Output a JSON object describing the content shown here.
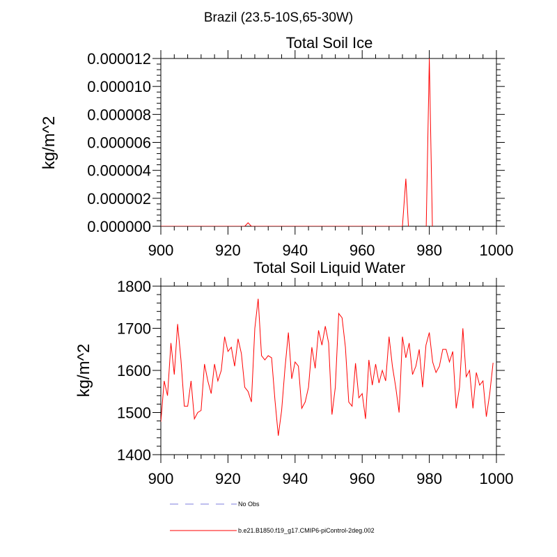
{
  "figure_title": "Brazil (23.5-10S,65-30W)",
  "colors": {
    "series": "#ff0000",
    "obs": "#a9a9e8",
    "axis": "#000000"
  },
  "legend": {
    "placement": "bottom-center",
    "entries": [
      {
        "label": "No Obs",
        "style": "dashed",
        "color": "#a9a9e8"
      },
      {
        "label": "b.e21.B1850.f19_g17.CMIP6-piControl-2deg.002",
        "style": "solid",
        "color": "#ff0000"
      }
    ]
  },
  "chart_data": [
    {
      "type": "line",
      "title": "Total Soil Ice",
      "xlabel": "",
      "ylabel": "kg/m^2",
      "xlim": [
        900,
        1000
      ],
      "ylim": [
        0,
        1.2e-05
      ],
      "xticks": [
        "900",
        "920",
        "940",
        "960",
        "980",
        "1000"
      ],
      "yticks": [
        "0.000000",
        "0.000002",
        "0.000004",
        "0.000006",
        "0.000008",
        "0.000010",
        "0.000012"
      ],
      "grid": false,
      "series": [
        {
          "x": [
            900,
            925,
            926,
            927,
            972,
            973,
            974,
            979,
            980,
            981,
            1000
          ],
          "values": [
            0,
            0,
            2.5e-07,
            0,
            0,
            3.4e-06,
            -1e-06,
            -1e-06,
            1.2e-05,
            -1e-06,
            -1e-06
          ]
        }
      ]
    },
    {
      "type": "line",
      "title": "Total Soil Liquid Water",
      "xlabel": "",
      "ylabel": "kg/m^2",
      "xlim": [
        900,
        1000
      ],
      "ylim": [
        1400,
        1800
      ],
      "xticks": [
        "900",
        "920",
        "940",
        "960",
        "980",
        "1000"
      ],
      "yticks": [
        "1400",
        "1500",
        "1600",
        "1700",
        "1800"
      ],
      "grid": false,
      "series": [
        {
          "x_start": 900,
          "values": [
            1478,
            1575,
            1540,
            1665,
            1590,
            1710,
            1625,
            1515,
            1515,
            1575,
            1485,
            1500,
            1505,
            1615,
            1575,
            1545,
            1615,
            1575,
            1600,
            1680,
            1645,
            1655,
            1610,
            1675,
            1640,
            1560,
            1550,
            1525,
            1700,
            1770,
            1635,
            1625,
            1635,
            1630,
            1530,
            1445,
            1505,
            1605,
            1690,
            1580,
            1620,
            1610,
            1510,
            1525,
            1560,
            1655,
            1605,
            1695,
            1660,
            1705,
            1665,
            1495,
            1560,
            1735,
            1725,
            1655,
            1525,
            1515,
            1617,
            1535,
            1545,
            1485,
            1625,
            1565,
            1615,
            1570,
            1600,
            1575,
            1680,
            1610,
            1560,
            1500,
            1680,
            1630,
            1665,
            1590,
            1610,
            1650,
            1560,
            1660,
            1690,
            1620,
            1595,
            1610,
            1650,
            1650,
            1620,
            1645,
            1510,
            1560,
            1700,
            1585,
            1600,
            1510,
            1595,
            1565,
            1575,
            1490,
            1545,
            1618
          ]
        }
      ]
    }
  ]
}
